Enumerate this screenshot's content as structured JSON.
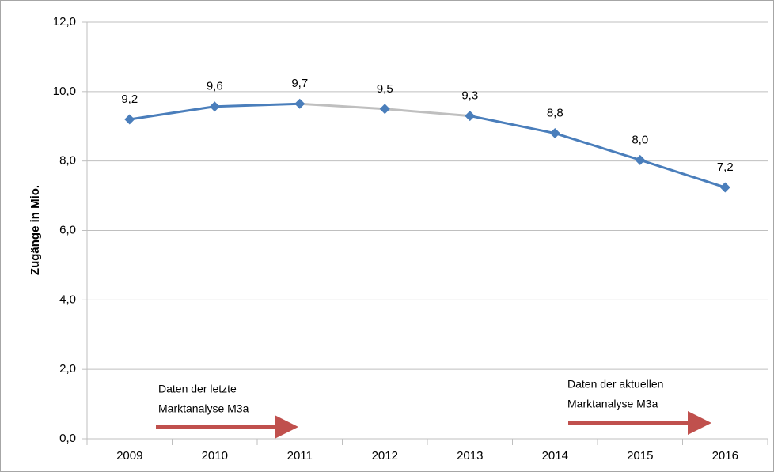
{
  "chart_data": {
    "type": "line",
    "y_label": "Zugänge in Mio.",
    "categories": [
      "2009",
      "2010",
      "2011",
      "2012",
      "2013",
      "2014",
      "2015",
      "2016"
    ],
    "series": [
      {
        "color": "#4a7ebb",
        "values": [
          9.2,
          9.57,
          9.65,
          9.5,
          9.3,
          8.8,
          8.03,
          7.24
        ],
        "value_labels": [
          "9,2",
          "9,6",
          "9,7",
          "9,5",
          "9,3",
          "8,8",
          "8,0",
          "7,2"
        ],
        "segment_colors": [
          "#4a7ebb",
          "#4a7ebb",
          "#bfbfbf",
          "#bfbfbf",
          "#4a7ebb",
          "#4a7ebb",
          "#4a7ebb"
        ]
      }
    ],
    "ylim": [
      0,
      12
    ],
    "yticks": [
      {
        "value": 0,
        "label": "0,0"
      },
      {
        "value": 2,
        "label": "2,0"
      },
      {
        "value": 4,
        "label": "4,0"
      },
      {
        "value": 6,
        "label": "6,0"
      },
      {
        "value": 8,
        "label": "8,0"
      },
      {
        "value": 10,
        "label": "10,0"
      },
      {
        "value": 12,
        "label": "12,0"
      }
    ],
    "grid": true,
    "annotations": [
      {
        "lines": [
          "Daten der letzte",
          "Marktanalyse M3a"
        ]
      },
      {
        "lines": [
          "Daten der aktuellen",
          "Marktanalyse M3a"
        ]
      }
    ]
  }
}
